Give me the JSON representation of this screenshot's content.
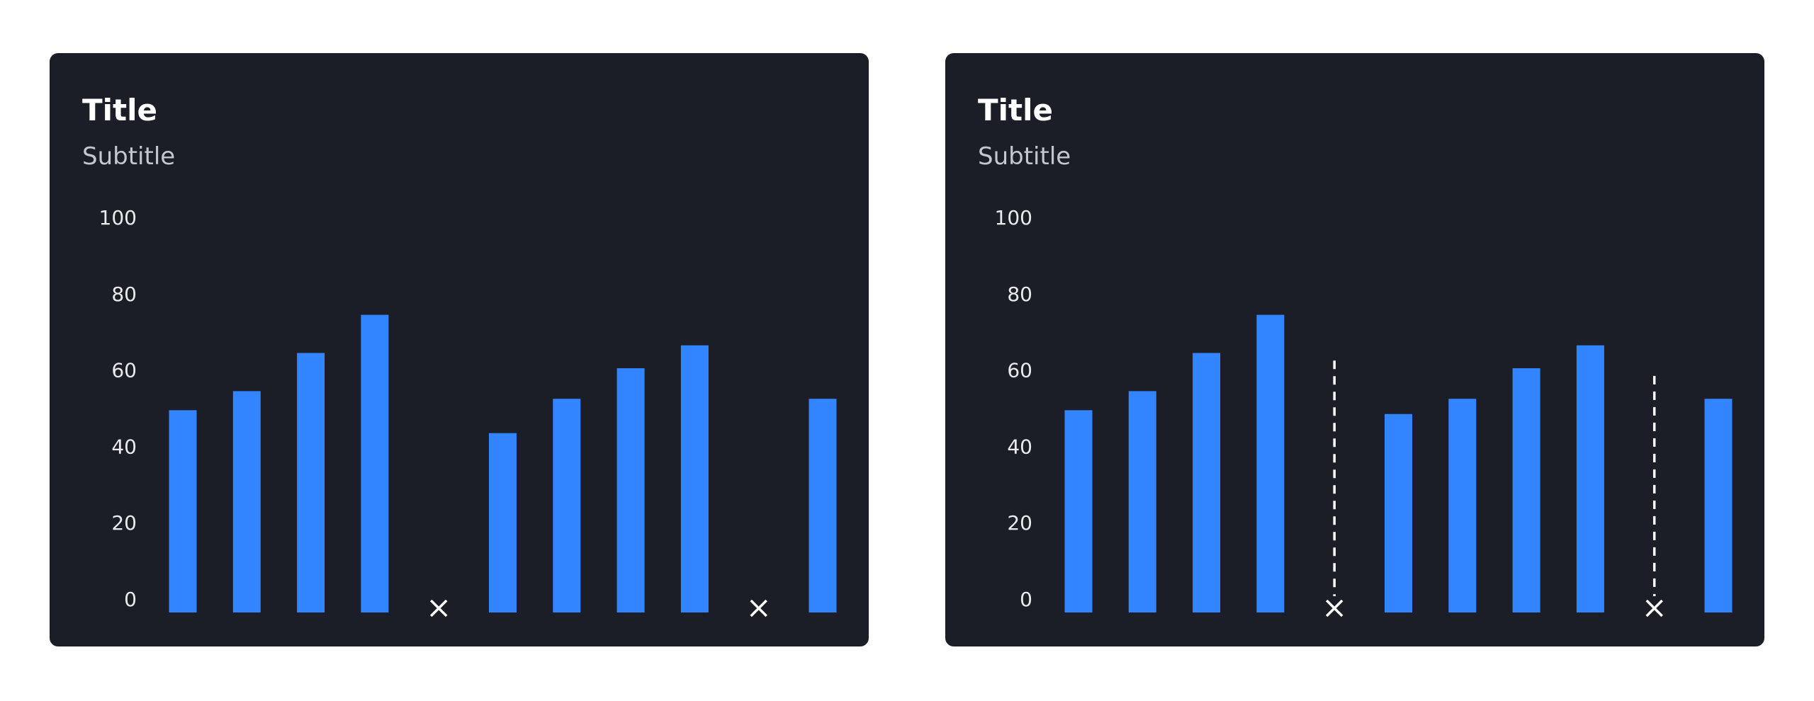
{
  "chart_data": [
    {
      "type": "bar",
      "title": "Title",
      "subtitle": "Subtitle",
      "color": "#3384ff",
      "values": [
        53,
        58,
        68,
        78,
        null,
        47,
        56,
        64,
        70,
        null,
        56
      ],
      "ylim": [
        0,
        100
      ],
      "yticks": [
        0,
        20,
        40,
        60,
        80,
        100
      ],
      "grid": false
    },
    {
      "type": "bar",
      "title": "Title",
      "subtitle": "Subtitle",
      "color": "#3384ff",
      "values": [
        53,
        58,
        68,
        78,
        null,
        52,
        56,
        64,
        70,
        null,
        56
      ],
      "missing_estimates": [
        null,
        null,
        null,
        null,
        66,
        null,
        null,
        null,
        null,
        62,
        null
      ],
      "ylim": [
        0,
        100
      ],
      "yticks": [
        0,
        20,
        40,
        60,
        80,
        100
      ],
      "grid": false
    }
  ]
}
